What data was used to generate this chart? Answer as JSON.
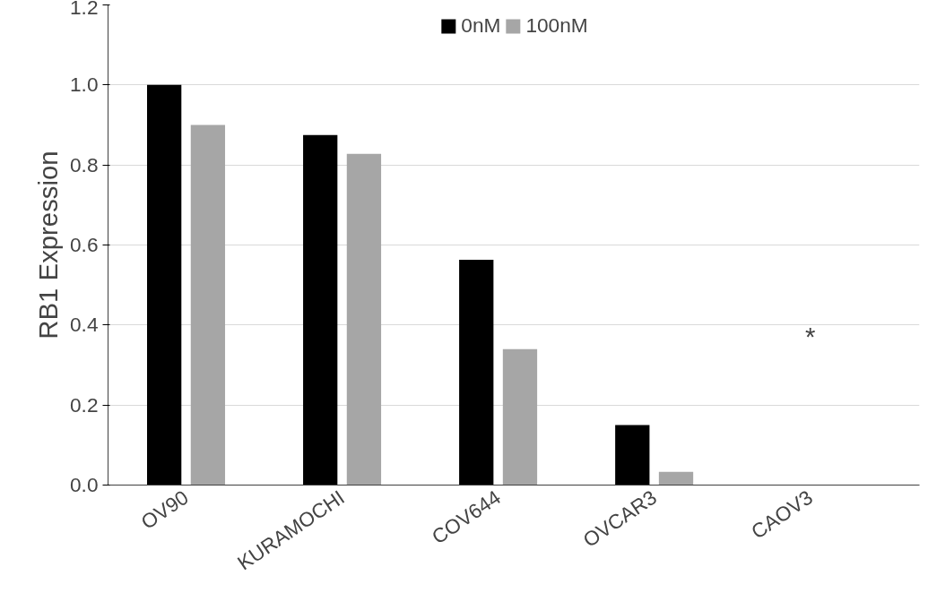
{
  "chart_data": {
    "type": "bar",
    "ylabel": "RB1 Expression",
    "categories": [
      "OV90",
      "KURAMOCHI",
      "COV644",
      "OVCAR3",
      "CAOV3"
    ],
    "series": [
      {
        "name": "0nM",
        "color": "#000000",
        "values": [
          1.0,
          0.875,
          0.563,
          0.15,
          null
        ]
      },
      {
        "name": "100nM",
        "color": "#a6a6a6",
        "values": [
          0.9,
          0.828,
          0.34,
          0.033,
          null
        ]
      }
    ],
    "ylim": [
      0,
      1.2
    ],
    "yticks": [
      {
        "value": 0,
        "label": "0.0"
      },
      {
        "value": 0.2,
        "label": "0.2"
      },
      {
        "value": 0.4,
        "label": "0.4"
      },
      {
        "value": 0.6,
        "label": "0.6"
      },
      {
        "value": 0.8,
        "label": "0.8"
      },
      {
        "value": 1.0,
        "label": "1.0"
      },
      {
        "value": 1.2,
        "label": "1.2"
      }
    ],
    "annotations": [
      "*"
    ],
    "grid": "y",
    "legend": "top"
  }
}
